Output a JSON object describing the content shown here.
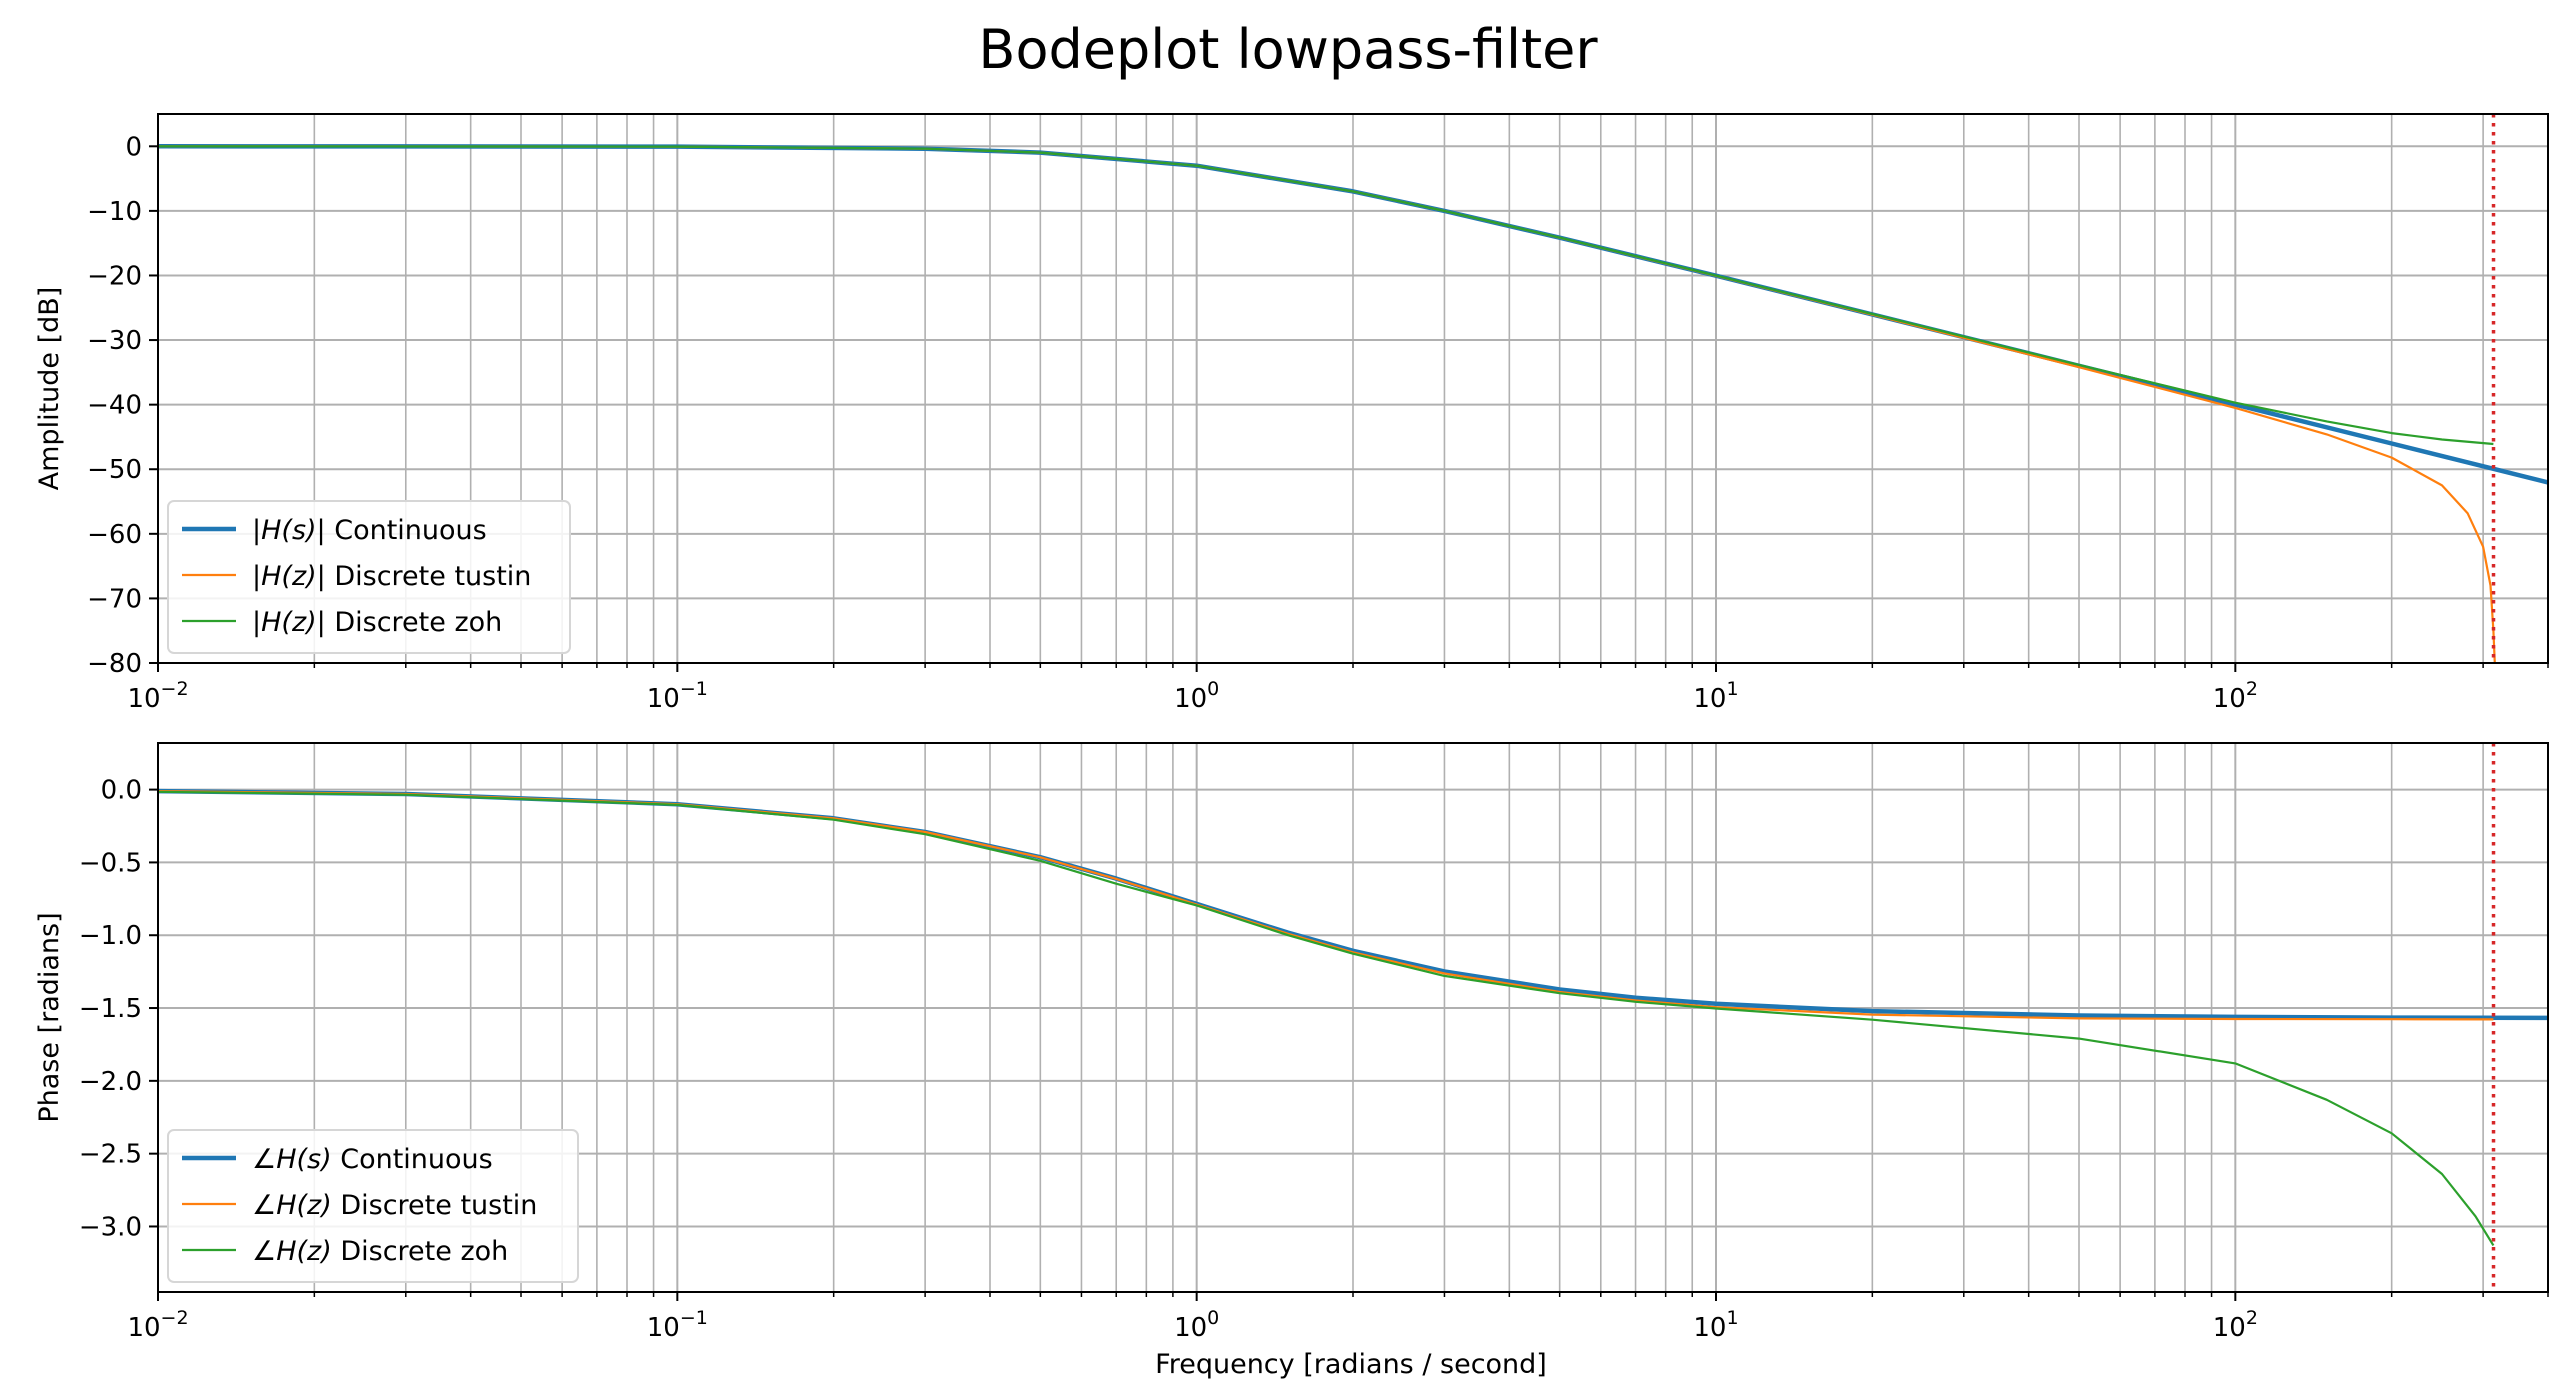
{
  "chart_data": {
    "title": "Bodeplot lowpass-filter",
    "xlabel": "Frequency [radians / second]",
    "xscale": "log",
    "xlim": [
      0.01,
      400
    ],
    "x_tick_labels": [
      {
        "base": "10",
        "exp": "−2"
      },
      {
        "base": "10",
        "exp": "−1"
      },
      {
        "base": "10",
        "exp": "0"
      },
      {
        "base": "10",
        "exp": "1"
      },
      {
        "base": "10",
        "exp": "2"
      }
    ],
    "nyquist_marker": {
      "x": 314.16,
      "color": "#d62728",
      "style": "dotted"
    },
    "colors": {
      "continuous": "#1f77b4",
      "tustin": "#ff7f0e",
      "zoh": "#2ca02c"
    },
    "panels": [
      {
        "name": "amplitude",
        "type": "line",
        "ylabel": "Amplitude [dB]",
        "ylim": [
          -80,
          5
        ],
        "y_ticks": [
          0,
          -10,
          -20,
          -30,
          -40,
          -50,
          -60,
          -70,
          -80
        ],
        "y_tick_labels": [
          "0",
          "−10",
          "−20",
          "−30",
          "−40",
          "−50",
          "−60",
          "−70",
          "−80"
        ],
        "grid": true,
        "legend_position": "lower-left",
        "series": [
          {
            "name": "|H(s)| Continuous",
            "legend_prefix": "|",
            "legend_math": "H(s)",
            "legend_suffix": "| Continuous",
            "x": [
              0.01,
              0.1,
              0.3,
              0.5,
              1,
              2,
              3,
              5,
              10,
              20,
              50,
              100,
              200,
              314,
              400
            ],
            "y": [
              0,
              -0.04,
              -0.37,
              -0.97,
              -3.01,
              -6.99,
              -10.0,
              -14.15,
              -20.04,
              -26.03,
              -33.98,
              -40.0,
              -46.02,
              -49.94,
              -52.04
            ]
          },
          {
            "name": "|H(z)| Discrete tustin",
            "legend_prefix": "|",
            "legend_math": "H(z)",
            "legend_suffix": "| Discrete tustin",
            "x": [
              0.01,
              0.1,
              0.3,
              0.5,
              1,
              2,
              3,
              5,
              10,
              20,
              50,
              100,
              150,
              200,
              250,
              280,
              300,
              310,
              314,
              316
            ],
            "y": [
              0,
              -0.04,
              -0.37,
              -0.97,
              -3.01,
              -6.99,
              -10.0,
              -14.15,
              -20.05,
              -26.07,
              -34.2,
              -40.5,
              -44.6,
              -48.2,
              -52.5,
              -56.8,
              -62.0,
              -68.0,
              -75.0,
              -80.0
            ]
          },
          {
            "name": "|H(z)| Discrete zoh",
            "legend_prefix": "|",
            "legend_math": "H(z)",
            "legend_suffix": "| Discrete zoh",
            "x": [
              0.01,
              0.1,
              0.3,
              0.5,
              1,
              2,
              3,
              5,
              10,
              20,
              50,
              100,
              150,
              200,
              250,
              314
            ],
            "y": [
              0,
              -0.04,
              -0.37,
              -0.97,
              -3.01,
              -6.99,
              -10.0,
              -14.14,
              -20.02,
              -25.97,
              -33.85,
              -39.7,
              -42.6,
              -44.4,
              -45.4,
              -46.1
            ]
          }
        ]
      },
      {
        "name": "phase",
        "type": "line",
        "ylabel": "Phase [radians]",
        "ylim": [
          -3.45,
          0.32
        ],
        "y_ticks": [
          0.0,
          -0.5,
          -1.0,
          -1.5,
          -2.0,
          -2.5,
          -3.0
        ],
        "y_tick_labels": [
          "0.0",
          "−0.5",
          "−1.0",
          "−1.5",
          "−2.0",
          "−2.5",
          "−3.0"
        ],
        "grid": true,
        "legend_position": "lower-left",
        "series": [
          {
            "name": "∠H(s) Continuous",
            "legend_prefix": "∠",
            "legend_math": "H(s)",
            "legend_suffix": " Continuous",
            "x": [
              0.01,
              0.03,
              0.1,
              0.2,
              0.3,
              0.5,
              0.7,
              1,
              1.5,
              2,
              3,
              5,
              7,
              10,
              20,
              50,
              100,
              200,
              400
            ],
            "y": [
              -0.01,
              -0.03,
              -0.1,
              -0.197,
              -0.291,
              -0.464,
              -0.611,
              -0.785,
              -0.983,
              -1.107,
              -1.249,
              -1.373,
              -1.429,
              -1.471,
              -1.521,
              -1.551,
              -1.561,
              -1.566,
              -1.568
            ]
          },
          {
            "name": "∠H(z) Discrete tustin",
            "legend_prefix": "∠",
            "legend_math": "H(z)",
            "legend_suffix": " Discrete tustin",
            "x": [
              0.01,
              0.03,
              0.1,
              0.2,
              0.3,
              0.5,
              0.7,
              1,
              1.5,
              2,
              3,
              5,
              7,
              10,
              20,
              50,
              100,
              200,
              314
            ],
            "y": [
              -0.01,
              -0.03,
              -0.1,
              -0.197,
              -0.291,
              -0.465,
              -0.613,
              -0.789,
              -0.99,
              -1.117,
              -1.262,
              -1.39,
              -1.448,
              -1.494,
              -1.545,
              -1.571,
              -1.575,
              -1.577,
              -1.578
            ]
          },
          {
            "name": "∠H(z) Discrete zoh",
            "legend_prefix": "∠",
            "legend_math": "H(z)",
            "legend_suffix": " Discrete zoh",
            "x": [
              0.01,
              0.03,
              0.1,
              0.2,
              0.3,
              0.5,
              0.7,
              1,
              1.5,
              2,
              3,
              5,
              7,
              10,
              20,
              50,
              100,
              150,
              200,
              250,
              290,
              314
            ],
            "y": [
              -0.015,
              -0.035,
              -0.105,
              -0.207,
              -0.306,
              -0.489,
              -0.646,
              -0.795,
              -1.0,
              -1.127,
              -1.279,
              -1.398,
              -1.457,
              -1.503,
              -1.58,
              -1.71,
              -1.88,
              -2.13,
              -2.36,
              -2.64,
              -2.93,
              -3.13
            ]
          }
        ]
      }
    ]
  }
}
